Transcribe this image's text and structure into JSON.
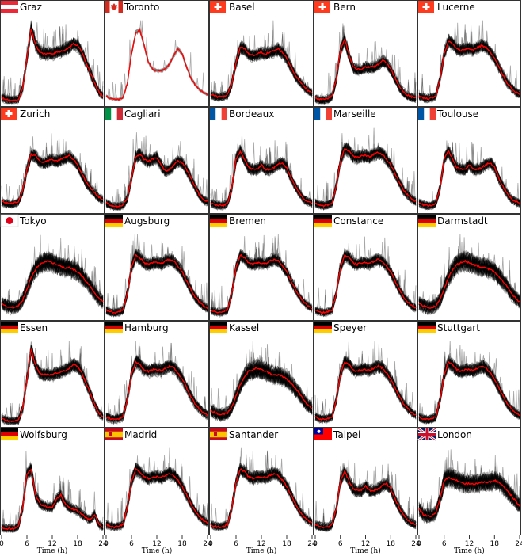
{
  "chart_data": {
    "type": "line",
    "layout": "5x5 small multiples",
    "xlabel": "Time (h)",
    "x_ticks": [
      0,
      6,
      12,
      18,
      24
    ],
    "xlim": [
      0,
      24
    ],
    "y_axis": "no tick labels",
    "series_style": {
      "individual_days": "#000000",
      "median": "#ff0000"
    },
    "cities": [
      {
        "name": "Graz",
        "flag": "at-flag",
        "profile": "late-evening",
        "median": [
          0.08,
          0.06,
          0.05,
          0.05,
          0.06,
          0.2,
          0.55,
          0.9,
          0.72,
          0.62,
          0.6,
          0.6,
          0.6,
          0.62,
          0.63,
          0.65,
          0.68,
          0.72,
          0.7,
          0.62,
          0.5,
          0.38,
          0.25,
          0.15,
          0.1
        ]
      },
      {
        "name": "Toronto",
        "flag": "ca-flag",
        "profile": "two-peaks",
        "median": [
          0.1,
          0.07,
          0.06,
          0.06,
          0.08,
          0.25,
          0.6,
          0.85,
          0.88,
          0.7,
          0.5,
          0.42,
          0.4,
          0.4,
          0.42,
          0.48,
          0.58,
          0.66,
          0.6,
          0.45,
          0.32,
          0.24,
          0.18,
          0.14,
          0.12
        ]
      },
      {
        "name": "Basel",
        "flag": "ch-flag",
        "profile": "evening",
        "median": [
          0.12,
          0.1,
          0.09,
          0.1,
          0.12,
          0.25,
          0.5,
          0.68,
          0.66,
          0.6,
          0.58,
          0.6,
          0.62,
          0.6,
          0.62,
          0.64,
          0.66,
          0.62,
          0.55,
          0.45,
          0.35,
          0.28,
          0.22,
          0.17,
          0.14
        ]
      },
      {
        "name": "Bern",
        "flag": "ch-flag",
        "profile": "morning-peak",
        "median": [
          0.08,
          0.06,
          0.06,
          0.07,
          0.1,
          0.3,
          0.65,
          0.78,
          0.6,
          0.45,
          0.42,
          0.42,
          0.45,
          0.44,
          0.45,
          0.48,
          0.52,
          0.5,
          0.42,
          0.32,
          0.22,
          0.15,
          0.11,
          0.09,
          0.08
        ]
      },
      {
        "name": "Lucerne",
        "flag": "ch-flag",
        "profile": "plateau",
        "median": [
          0.1,
          0.08,
          0.07,
          0.08,
          0.1,
          0.3,
          0.6,
          0.75,
          0.72,
          0.66,
          0.64,
          0.66,
          0.66,
          0.65,
          0.68,
          0.7,
          0.68,
          0.62,
          0.55,
          0.45,
          0.35,
          0.26,
          0.2,
          0.15,
          0.12
        ]
      },
      {
        "name": "Zurich",
        "flag": "ch-flag",
        "profile": "evening",
        "median": [
          0.12,
          0.1,
          0.09,
          0.1,
          0.12,
          0.25,
          0.5,
          0.68,
          0.66,
          0.6,
          0.58,
          0.6,
          0.62,
          0.6,
          0.62,
          0.64,
          0.66,
          0.62,
          0.55,
          0.45,
          0.35,
          0.28,
          0.22,
          0.17,
          0.14
        ]
      },
      {
        "name": "Cagliari",
        "flag": "it-flag",
        "profile": "midday",
        "median": [
          0.1,
          0.08,
          0.06,
          0.06,
          0.08,
          0.15,
          0.4,
          0.65,
          0.68,
          0.62,
          0.6,
          0.62,
          0.64,
          0.55,
          0.48,
          0.5,
          0.55,
          0.6,
          0.58,
          0.5,
          0.4,
          0.3,
          0.2,
          0.14,
          0.12
        ]
      },
      {
        "name": "Bordeaux",
        "flag": "fr-flag",
        "profile": "morning-peak",
        "median": [
          0.1,
          0.08,
          0.07,
          0.07,
          0.1,
          0.28,
          0.62,
          0.72,
          0.62,
          0.52,
          0.5,
          0.5,
          0.55,
          0.5,
          0.5,
          0.52,
          0.56,
          0.58,
          0.52,
          0.4,
          0.3,
          0.22,
          0.15,
          0.12,
          0.1
        ]
      },
      {
        "name": "Marseille",
        "flag": "fr-flag",
        "profile": "plateau",
        "median": [
          0.1,
          0.08,
          0.07,
          0.08,
          0.1,
          0.3,
          0.6,
          0.75,
          0.72,
          0.66,
          0.64,
          0.66,
          0.66,
          0.65,
          0.68,
          0.7,
          0.68,
          0.62,
          0.55,
          0.45,
          0.35,
          0.26,
          0.2,
          0.15,
          0.12
        ]
      },
      {
        "name": "Toulouse",
        "flag": "fr-flag",
        "profile": "morning-peak",
        "median": [
          0.1,
          0.08,
          0.07,
          0.07,
          0.1,
          0.28,
          0.62,
          0.72,
          0.62,
          0.52,
          0.5,
          0.5,
          0.55,
          0.5,
          0.5,
          0.52,
          0.56,
          0.58,
          0.52,
          0.4,
          0.3,
          0.22,
          0.15,
          0.12,
          0.1
        ]
      },
      {
        "name": "Tokyo",
        "flag": "jp-flag",
        "profile": "broad",
        "median": [
          0.18,
          0.15,
          0.13,
          0.13,
          0.15,
          0.22,
          0.35,
          0.48,
          0.58,
          0.64,
          0.66,
          0.68,
          0.66,
          0.64,
          0.62,
          0.6,
          0.6,
          0.58,
          0.55,
          0.5,
          0.44,
          0.38,
          0.3,
          0.24,
          0.2
        ]
      },
      {
        "name": "Augsburg",
        "flag": "de-flag",
        "profile": "plateau",
        "median": [
          0.1,
          0.08,
          0.07,
          0.08,
          0.1,
          0.3,
          0.6,
          0.75,
          0.72,
          0.66,
          0.64,
          0.66,
          0.66,
          0.65,
          0.68,
          0.7,
          0.68,
          0.62,
          0.55,
          0.45,
          0.35,
          0.26,
          0.2,
          0.15,
          0.12
        ]
      },
      {
        "name": "Bremen",
        "flag": "de-flag",
        "profile": "plateau",
        "median": [
          0.1,
          0.08,
          0.07,
          0.08,
          0.1,
          0.3,
          0.6,
          0.75,
          0.72,
          0.66,
          0.64,
          0.66,
          0.66,
          0.65,
          0.68,
          0.7,
          0.68,
          0.62,
          0.55,
          0.45,
          0.35,
          0.26,
          0.2,
          0.15,
          0.12
        ]
      },
      {
        "name": "Constance",
        "flag": "de-flag",
        "profile": "plateau",
        "median": [
          0.1,
          0.08,
          0.07,
          0.08,
          0.1,
          0.3,
          0.6,
          0.75,
          0.72,
          0.66,
          0.64,
          0.66,
          0.66,
          0.65,
          0.68,
          0.7,
          0.68,
          0.62,
          0.55,
          0.45,
          0.35,
          0.26,
          0.2,
          0.15,
          0.12
        ]
      },
      {
        "name": "Darmstadt",
        "flag": "de-flag",
        "profile": "broad",
        "median": [
          0.18,
          0.15,
          0.13,
          0.13,
          0.15,
          0.22,
          0.35,
          0.48,
          0.58,
          0.64,
          0.66,
          0.68,
          0.66,
          0.64,
          0.62,
          0.6,
          0.6,
          0.58,
          0.55,
          0.5,
          0.44,
          0.38,
          0.3,
          0.24,
          0.2
        ]
      },
      {
        "name": "Essen",
        "flag": "de-flag",
        "profile": "late-evening",
        "median": [
          0.08,
          0.06,
          0.05,
          0.05,
          0.06,
          0.2,
          0.55,
          0.9,
          0.72,
          0.62,
          0.6,
          0.6,
          0.6,
          0.62,
          0.63,
          0.65,
          0.68,
          0.72,
          0.7,
          0.62,
          0.5,
          0.38,
          0.25,
          0.15,
          0.1
        ]
      },
      {
        "name": "Hamburg",
        "flag": "de-flag",
        "profile": "plateau",
        "median": [
          0.1,
          0.08,
          0.07,
          0.08,
          0.1,
          0.3,
          0.6,
          0.75,
          0.72,
          0.66,
          0.64,
          0.66,
          0.66,
          0.65,
          0.68,
          0.7,
          0.68,
          0.62,
          0.55,
          0.45,
          0.35,
          0.26,
          0.2,
          0.15,
          0.12
        ]
      },
      {
        "name": "Kassel",
        "flag": "de-flag",
        "profile": "broad",
        "median": [
          0.18,
          0.15,
          0.13,
          0.13,
          0.15,
          0.22,
          0.35,
          0.48,
          0.58,
          0.64,
          0.66,
          0.68,
          0.66,
          0.64,
          0.62,
          0.6,
          0.6,
          0.58,
          0.55,
          0.5,
          0.44,
          0.38,
          0.3,
          0.24,
          0.2
        ]
      },
      {
        "name": "Speyer",
        "flag": "de-flag",
        "profile": "plateau",
        "median": [
          0.1,
          0.08,
          0.07,
          0.08,
          0.1,
          0.3,
          0.6,
          0.75,
          0.72,
          0.66,
          0.64,
          0.66,
          0.66,
          0.65,
          0.68,
          0.7,
          0.68,
          0.62,
          0.55,
          0.45,
          0.35,
          0.26,
          0.2,
          0.15,
          0.12
        ]
      },
      {
        "name": "Stuttgart",
        "flag": "de-flag",
        "profile": "plateau",
        "median": [
          0.1,
          0.08,
          0.07,
          0.08,
          0.1,
          0.3,
          0.6,
          0.75,
          0.72,
          0.66,
          0.64,
          0.66,
          0.66,
          0.65,
          0.68,
          0.7,
          0.68,
          0.62,
          0.55,
          0.45,
          0.35,
          0.26,
          0.2,
          0.15,
          0.12
        ]
      },
      {
        "name": "Wolfsburg",
        "flag": "de-flag",
        "profile": "shift-peaks",
        "median": [
          0.06,
          0.05,
          0.05,
          0.05,
          0.08,
          0.3,
          0.7,
          0.75,
          0.45,
          0.35,
          0.32,
          0.3,
          0.3,
          0.4,
          0.45,
          0.35,
          0.3,
          0.28,
          0.26,
          0.22,
          0.18,
          0.15,
          0.22,
          0.1,
          0.07
        ]
      },
      {
        "name": "Madrid",
        "flag": "es-flag",
        "profile": "plateau",
        "median": [
          0.1,
          0.08,
          0.07,
          0.08,
          0.1,
          0.3,
          0.6,
          0.75,
          0.72,
          0.66,
          0.64,
          0.66,
          0.66,
          0.65,
          0.68,
          0.7,
          0.68,
          0.62,
          0.55,
          0.45,
          0.35,
          0.26,
          0.2,
          0.15,
          0.12
        ]
      },
      {
        "name": "Santander",
        "flag": "es-flag",
        "profile": "plateau",
        "median": [
          0.1,
          0.08,
          0.07,
          0.08,
          0.1,
          0.3,
          0.6,
          0.75,
          0.72,
          0.66,
          0.64,
          0.66,
          0.66,
          0.65,
          0.68,
          0.7,
          0.68,
          0.62,
          0.55,
          0.45,
          0.35,
          0.26,
          0.2,
          0.15,
          0.12
        ]
      },
      {
        "name": "Taipei",
        "flag": "tw-flag",
        "profile": "morning-peak",
        "median": [
          0.1,
          0.08,
          0.07,
          0.07,
          0.1,
          0.28,
          0.62,
          0.72,
          0.62,
          0.52,
          0.5,
          0.5,
          0.55,
          0.5,
          0.5,
          0.52,
          0.56,
          0.58,
          0.52,
          0.4,
          0.3,
          0.22,
          0.15,
          0.12,
          0.1
        ]
      },
      {
        "name": "London",
        "flag": "gb-flag",
        "profile": "flat",
        "median": [
          0.28,
          0.22,
          0.2,
          0.2,
          0.24,
          0.4,
          0.62,
          0.65,
          0.64,
          0.62,
          0.6,
          0.58,
          0.58,
          0.58,
          0.58,
          0.6,
          0.6,
          0.6,
          0.62,
          0.6,
          0.56,
          0.5,
          0.44,
          0.38,
          0.32
        ]
      }
    ]
  }
}
